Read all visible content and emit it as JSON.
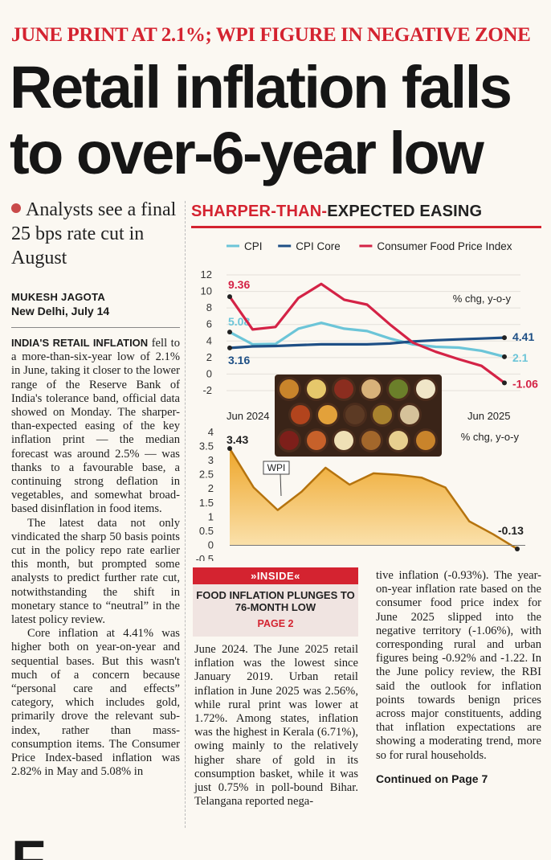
{
  "kicker": "JUNE PRINT AT 2.1%; WPI FIGURE IN NEGATIVE ZONE",
  "headline": "Retail inflation falls to over-6-year low",
  "standfirst": "Analysts see a final 25 bps rate cut in August",
  "byline": "MUKESH JAGOTA",
  "dateline": "New Delhi, July 14",
  "lead_in": "INDIA'S RETAIL INFLATION",
  "body_left": [
    " fell to a more-than-six-year low of 2.1% in June, taking it closer to the lower range of the Reserve Bank of India's tolerance band, official data showed on Monday. The sharper-than-expected easing of the key inflation print — the median forecast was around 2.5% — was thanks to a favourable base, a continuing strong deflation in vegetables, and somewhat broad-based disinflation in food items.",
    "The latest data not only vindicated the sharp 50 basis points cut in the policy repo rate earlier this month, but prompted some analysts to predict further rate cut, notwithstanding the shift in monetary stance to “neutral” in the latest policy review.",
    "Core inflation at 4.41% was higher both on year-on-year and sequential bases. But this wasn't much of a concern because “personal care and effects” category, which includes gold, primarily drove the relevant sub-index, rather than mass-consumption items. The Consumer Price Index-based inflation was 2.82% in May and 5.08% in"
  ],
  "body_mid": "June 2024. The June 2025 retail inflation was the lowest since January 2019. Urban retail inflation in June 2025 was 2.56%, while rural print was lower at 1.72%. Among states, inflation was the highest in Kerala (6.71%), owing mainly to the relatively higher share of gold in its consumption basket, while it was just 0.75% in poll-bound Bihar. Telangana reported nega-",
  "body_right": "tive inflation (-0.93%). The year-on-year inflation rate based on the consumer food price index for June 2025 slipped into the negative territory (-1.06%), with corresponding rural and urban figures being -0.92% and -1.22. In the June policy review, the RBI said the outlook for inflation points towards benign prices across major constituents, adding that inflation expectations are showing a moderating trend, more so for rural households.",
  "continued": "Continued on Page 7",
  "inside": {
    "tag": "»INSIDE«",
    "headline": "FOOD INFLATION PLUNGES TO 76-MONTH LOW",
    "page": "PAGE 2"
  },
  "bottom_fragment": "F",
  "chart_data": [
    {
      "type": "line",
      "title_red": "SHARPER-THAN-",
      "title_dark": "EXPECTED EASING",
      "unit_label": "% chg, y-o-y",
      "x_start": "Jun 2024",
      "x_end": "Jun 2025",
      "ylim": [
        -2,
        12
      ],
      "yticks": [
        -2,
        0,
        2,
        4,
        6,
        8,
        10,
        12
      ],
      "series": [
        {
          "name": "CPI",
          "color": "#6cc5d8",
          "values": [
            5.08,
            3.6,
            3.65,
            5.5,
            6.2,
            5.5,
            5.2,
            4.3,
            3.6,
            3.3,
            3.2,
            2.82,
            2.1
          ],
          "start_label": "5.08",
          "end_label": "2.1"
        },
        {
          "name": "CPI Core",
          "color": "#1e4f85",
          "values": [
            3.16,
            3.35,
            3.4,
            3.5,
            3.6,
            3.6,
            3.6,
            3.7,
            3.95,
            4.1,
            4.2,
            4.3,
            4.41
          ],
          "start_label": "3.16",
          "end_label": "4.41"
        },
        {
          "name": "Consumer Food Price Index",
          "color": "#d42346",
          "values": [
            9.36,
            5.4,
            5.7,
            9.2,
            10.9,
            9.0,
            8.4,
            6.0,
            3.8,
            2.7,
            1.8,
            0.99,
            -1.06
          ],
          "start_label": "9.36",
          "end_label": "-1.06"
        }
      ]
    },
    {
      "type": "area",
      "unit_label": "% chg, y-o-y",
      "x_start": "Jun 2024",
      "x_end": "Jun 2025",
      "ylim": [
        -0.5,
        4
      ],
      "yticks": [
        -0.5,
        0,
        0.5,
        1,
        1.5,
        2,
        2.5,
        3,
        3.5,
        4
      ],
      "series": [
        {
          "name": "WPI",
          "color": "#e8a21e",
          "values": [
            3.43,
            2.05,
            1.25,
            1.9,
            2.75,
            2.15,
            2.55,
            2.5,
            2.4,
            2.05,
            0.85,
            0.39,
            -0.13
          ],
          "start_label": "3.43",
          "end_label": "-0.13"
        }
      ]
    }
  ]
}
